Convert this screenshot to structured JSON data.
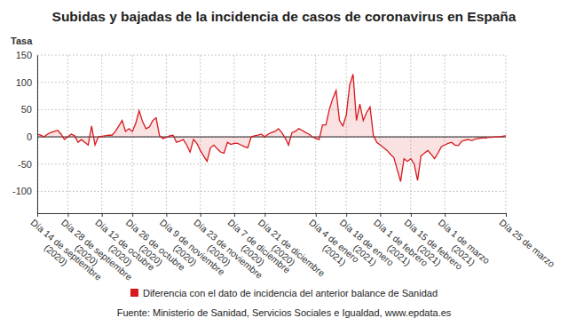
{
  "chart_data": {
    "type": "line",
    "title": "Subidas y bajadas de la incidencia de casos de coronavirus en España",
    "y_label": "Tasa",
    "source": "Fuente: Ministerio de Sanidad, Servicios Sociales e Igualdad, www.epdata.es",
    "categories": [
      "Día 14 de septiembre (2020)",
      null,
      null,
      null,
      null,
      null,
      null,
      null,
      null,
      "Día 28 de septiembre (2020)",
      null,
      null,
      null,
      null,
      null,
      null,
      null,
      null,
      null,
      "Día 12 de octubre (2020)",
      null,
      null,
      null,
      null,
      null,
      null,
      null,
      null,
      "Día 26 de octubre (2020)",
      null,
      null,
      null,
      null,
      null,
      null,
      null,
      null,
      null,
      "Día 9 de noviembre (2020)",
      null,
      null,
      null,
      null,
      null,
      null,
      null,
      null,
      null,
      "Día 23 de noviembre (2020)",
      null,
      null,
      null,
      null,
      null,
      null,
      null,
      null,
      null,
      "Día 7 de diciembre (2020)",
      null,
      null,
      null,
      null,
      null,
      null,
      null,
      null,
      "Día 21 de diciembre (2020)",
      null,
      null,
      null,
      null,
      null,
      null,
      null,
      null,
      null,
      null,
      null,
      null,
      null,
      null,
      "Día 4 de enero (2021)",
      null,
      null,
      null,
      null,
      null,
      null,
      null,
      null,
      "Día 18 de enero (2021)",
      null,
      null,
      null,
      null,
      null,
      null,
      null,
      null,
      null,
      "Día 1 de febrero (2021)",
      null,
      null,
      null,
      null,
      null,
      null,
      null,
      null,
      "Día 15 de febrero (2021)",
      null,
      null,
      null,
      null,
      null,
      null,
      null,
      null,
      null,
      "Día 1 de marzo (2021)",
      null,
      null,
      null,
      null,
      null,
      null,
      null,
      null,
      null,
      null,
      null,
      null,
      null,
      null,
      null,
      null,
      null,
      "Día 25 de marzo"
    ],
    "series": [
      {
        "name": "Diferencia con el dato de incidencia del anterior balance de Sanidad",
        "color": "#d7191c",
        "values": [
          5,
          3,
          0,
          5,
          8,
          10,
          12,
          5,
          -5,
          0,
          5,
          2,
          -10,
          -5,
          -10,
          -15,
          20,
          -15,
          0,
          1,
          2,
          3,
          3,
          10,
          20,
          30,
          10,
          15,
          10,
          25,
          48,
          28,
          15,
          18,
          30,
          35,
          2,
          -3,
          -1,
          2,
          3,
          -10,
          -8,
          -5,
          -15,
          -28,
          -5,
          -12,
          -25,
          -35,
          -45,
          -20,
          -15,
          -22,
          -28,
          -30,
          -10,
          -14,
          -12,
          -12,
          -15,
          -18,
          -20,
          0,
          2,
          3,
          5,
          0,
          5,
          8,
          10,
          15,
          8,
          -2,
          -15,
          8,
          10,
          15,
          12,
          8,
          5,
          0,
          -3,
          -5,
          22,
          22,
          50,
          70,
          85,
          30,
          20,
          40,
          95,
          115,
          30,
          60,
          30,
          45,
          55,
          2,
          -10,
          -15,
          -20,
          -25,
          -32,
          -38,
          -60,
          -82,
          -40,
          -45,
          -40,
          -50,
          -80,
          -35,
          -30,
          -25,
          -32,
          -40,
          -30,
          -18,
          -15,
          -12,
          -10,
          -15,
          -16,
          -8,
          -6,
          -5,
          -7,
          -4,
          -3,
          -2,
          -2,
          -1,
          -1,
          0,
          0,
          1,
          2
        ]
      }
    ],
    "ylim": [
      -140,
      150
    ],
    "yticks": [
      -100,
      -50,
      0,
      50,
      100,
      150
    ],
    "grid": true,
    "legend": "bottom"
  }
}
